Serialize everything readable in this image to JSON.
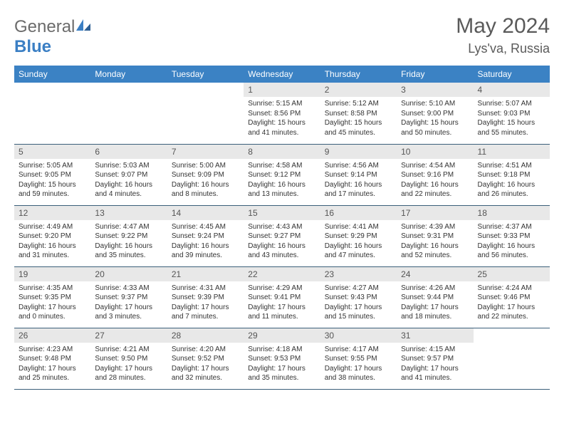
{
  "brand": {
    "general": "General",
    "blue": "Blue"
  },
  "title": {
    "month": "May 2024",
    "location": "Lys'va, Russia"
  },
  "colors": {
    "header_bg": "#3b82c4",
    "header_text": "#ffffff",
    "daynum_bg": "#e8e8e8",
    "border": "#3b5f7a",
    "logo_gray": "#6b6b6b",
    "logo_blue": "#3b7fc4"
  },
  "weekdays": [
    "Sunday",
    "Monday",
    "Tuesday",
    "Wednesday",
    "Thursday",
    "Friday",
    "Saturday"
  ],
  "weeks": [
    [
      {
        "n": "",
        "sr": "",
        "ss": "",
        "dl": "",
        "dl2": ""
      },
      {
        "n": "",
        "sr": "",
        "ss": "",
        "dl": "",
        "dl2": ""
      },
      {
        "n": "",
        "sr": "",
        "ss": "",
        "dl": "",
        "dl2": ""
      },
      {
        "n": "1",
        "sr": "Sunrise: 5:15 AM",
        "ss": "Sunset: 8:56 PM",
        "dl": "Daylight: 15 hours",
        "dl2": "and 41 minutes."
      },
      {
        "n": "2",
        "sr": "Sunrise: 5:12 AM",
        "ss": "Sunset: 8:58 PM",
        "dl": "Daylight: 15 hours",
        "dl2": "and 45 minutes."
      },
      {
        "n": "3",
        "sr": "Sunrise: 5:10 AM",
        "ss": "Sunset: 9:00 PM",
        "dl": "Daylight: 15 hours",
        "dl2": "and 50 minutes."
      },
      {
        "n": "4",
        "sr": "Sunrise: 5:07 AM",
        "ss": "Sunset: 9:03 PM",
        "dl": "Daylight: 15 hours",
        "dl2": "and 55 minutes."
      }
    ],
    [
      {
        "n": "5",
        "sr": "Sunrise: 5:05 AM",
        "ss": "Sunset: 9:05 PM",
        "dl": "Daylight: 15 hours",
        "dl2": "and 59 minutes."
      },
      {
        "n": "6",
        "sr": "Sunrise: 5:03 AM",
        "ss": "Sunset: 9:07 PM",
        "dl": "Daylight: 16 hours",
        "dl2": "and 4 minutes."
      },
      {
        "n": "7",
        "sr": "Sunrise: 5:00 AM",
        "ss": "Sunset: 9:09 PM",
        "dl": "Daylight: 16 hours",
        "dl2": "and 8 minutes."
      },
      {
        "n": "8",
        "sr": "Sunrise: 4:58 AM",
        "ss": "Sunset: 9:12 PM",
        "dl": "Daylight: 16 hours",
        "dl2": "and 13 minutes."
      },
      {
        "n": "9",
        "sr": "Sunrise: 4:56 AM",
        "ss": "Sunset: 9:14 PM",
        "dl": "Daylight: 16 hours",
        "dl2": "and 17 minutes."
      },
      {
        "n": "10",
        "sr": "Sunrise: 4:54 AM",
        "ss": "Sunset: 9:16 PM",
        "dl": "Daylight: 16 hours",
        "dl2": "and 22 minutes."
      },
      {
        "n": "11",
        "sr": "Sunrise: 4:51 AM",
        "ss": "Sunset: 9:18 PM",
        "dl": "Daylight: 16 hours",
        "dl2": "and 26 minutes."
      }
    ],
    [
      {
        "n": "12",
        "sr": "Sunrise: 4:49 AM",
        "ss": "Sunset: 9:20 PM",
        "dl": "Daylight: 16 hours",
        "dl2": "and 31 minutes."
      },
      {
        "n": "13",
        "sr": "Sunrise: 4:47 AM",
        "ss": "Sunset: 9:22 PM",
        "dl": "Daylight: 16 hours",
        "dl2": "and 35 minutes."
      },
      {
        "n": "14",
        "sr": "Sunrise: 4:45 AM",
        "ss": "Sunset: 9:24 PM",
        "dl": "Daylight: 16 hours",
        "dl2": "and 39 minutes."
      },
      {
        "n": "15",
        "sr": "Sunrise: 4:43 AM",
        "ss": "Sunset: 9:27 PM",
        "dl": "Daylight: 16 hours",
        "dl2": "and 43 minutes."
      },
      {
        "n": "16",
        "sr": "Sunrise: 4:41 AM",
        "ss": "Sunset: 9:29 PM",
        "dl": "Daylight: 16 hours",
        "dl2": "and 47 minutes."
      },
      {
        "n": "17",
        "sr": "Sunrise: 4:39 AM",
        "ss": "Sunset: 9:31 PM",
        "dl": "Daylight: 16 hours",
        "dl2": "and 52 minutes."
      },
      {
        "n": "18",
        "sr": "Sunrise: 4:37 AM",
        "ss": "Sunset: 9:33 PM",
        "dl": "Daylight: 16 hours",
        "dl2": "and 56 minutes."
      }
    ],
    [
      {
        "n": "19",
        "sr": "Sunrise: 4:35 AM",
        "ss": "Sunset: 9:35 PM",
        "dl": "Daylight: 17 hours",
        "dl2": "and 0 minutes."
      },
      {
        "n": "20",
        "sr": "Sunrise: 4:33 AM",
        "ss": "Sunset: 9:37 PM",
        "dl": "Daylight: 17 hours",
        "dl2": "and 3 minutes."
      },
      {
        "n": "21",
        "sr": "Sunrise: 4:31 AM",
        "ss": "Sunset: 9:39 PM",
        "dl": "Daylight: 17 hours",
        "dl2": "and 7 minutes."
      },
      {
        "n": "22",
        "sr": "Sunrise: 4:29 AM",
        "ss": "Sunset: 9:41 PM",
        "dl": "Daylight: 17 hours",
        "dl2": "and 11 minutes."
      },
      {
        "n": "23",
        "sr": "Sunrise: 4:27 AM",
        "ss": "Sunset: 9:43 PM",
        "dl": "Daylight: 17 hours",
        "dl2": "and 15 minutes."
      },
      {
        "n": "24",
        "sr": "Sunrise: 4:26 AM",
        "ss": "Sunset: 9:44 PM",
        "dl": "Daylight: 17 hours",
        "dl2": "and 18 minutes."
      },
      {
        "n": "25",
        "sr": "Sunrise: 4:24 AM",
        "ss": "Sunset: 9:46 PM",
        "dl": "Daylight: 17 hours",
        "dl2": "and 22 minutes."
      }
    ],
    [
      {
        "n": "26",
        "sr": "Sunrise: 4:23 AM",
        "ss": "Sunset: 9:48 PM",
        "dl": "Daylight: 17 hours",
        "dl2": "and 25 minutes."
      },
      {
        "n": "27",
        "sr": "Sunrise: 4:21 AM",
        "ss": "Sunset: 9:50 PM",
        "dl": "Daylight: 17 hours",
        "dl2": "and 28 minutes."
      },
      {
        "n": "28",
        "sr": "Sunrise: 4:20 AM",
        "ss": "Sunset: 9:52 PM",
        "dl": "Daylight: 17 hours",
        "dl2": "and 32 minutes."
      },
      {
        "n": "29",
        "sr": "Sunrise: 4:18 AM",
        "ss": "Sunset: 9:53 PM",
        "dl": "Daylight: 17 hours",
        "dl2": "and 35 minutes."
      },
      {
        "n": "30",
        "sr": "Sunrise: 4:17 AM",
        "ss": "Sunset: 9:55 PM",
        "dl": "Daylight: 17 hours",
        "dl2": "and 38 minutes."
      },
      {
        "n": "31",
        "sr": "Sunrise: 4:15 AM",
        "ss": "Sunset: 9:57 PM",
        "dl": "Daylight: 17 hours",
        "dl2": "and 41 minutes."
      },
      {
        "n": "",
        "sr": "",
        "ss": "",
        "dl": "",
        "dl2": ""
      }
    ]
  ]
}
